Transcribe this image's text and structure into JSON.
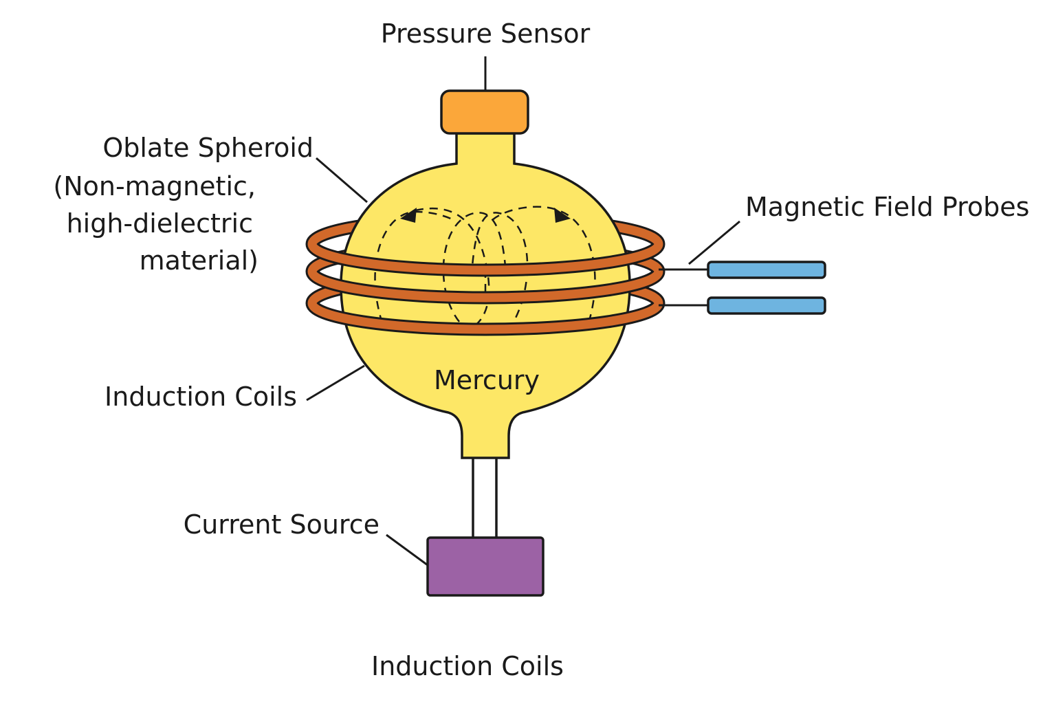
{
  "labels": {
    "pressure_sensor": "Pressure Sensor",
    "oblate_spheroid": {
      "line1": "Oblate Spheroi̇d",
      "line2": "(Non-magneti̇c,",
      "line3": "high-dielectric",
      "line4": "material)"
    },
    "magnetic_field_probes": "Magnetic Field Probes",
    "induction_coils_side": "Induction Coils",
    "mercury": "Mercury",
    "current_source": "Current Source",
    "induction_coils_bottom": "Induction Coils"
  },
  "colors": {
    "vessel": "#fde766",
    "sensor": "#fba73a",
    "coil": "#d2692a",
    "probe": "#6eb4e0",
    "current_source": "#9c62a5",
    "outline": "#1a1a1a"
  }
}
